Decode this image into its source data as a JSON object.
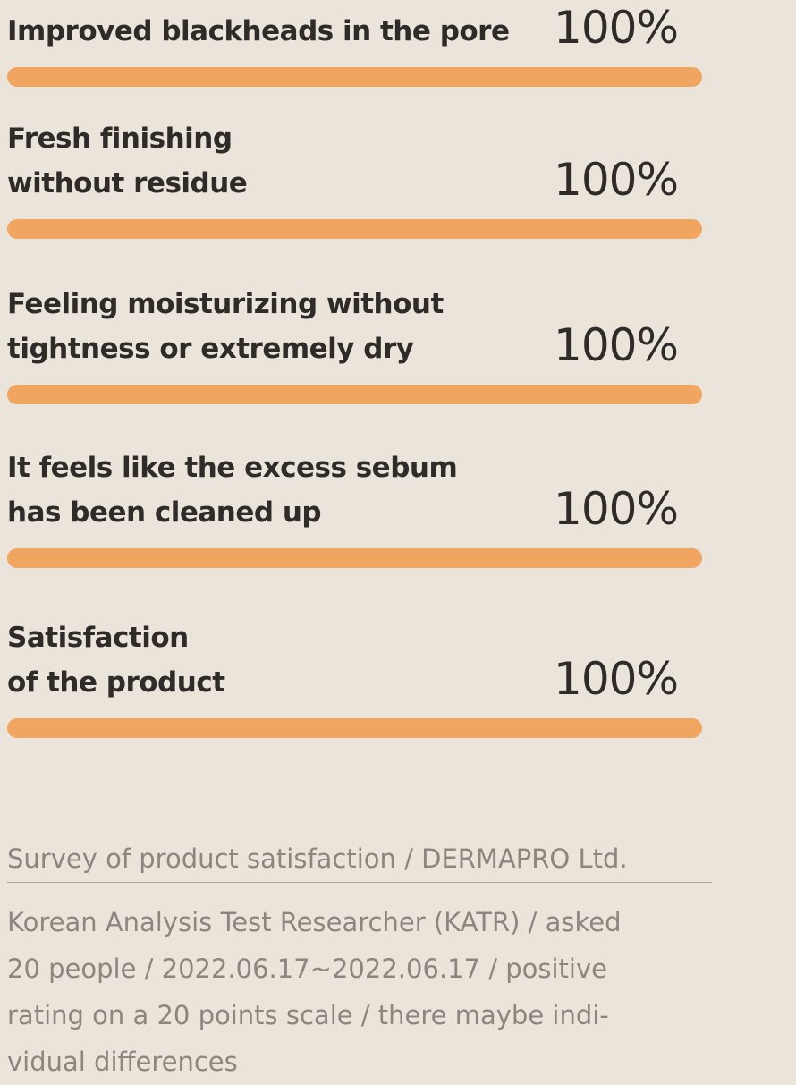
{
  "chart_data": {
    "type": "bar",
    "orientation": "horizontal",
    "categories": [
      "Improved blackheads in the pore",
      "Fresh finishing\nwithout residue",
      "Feeling moisturizing without\ntightness or extremely dry",
      "It feels like the excess sebum\nhas been cleaned up",
      "Satisfaction\nof the product"
    ],
    "values": [
      100,
      100,
      100,
      100,
      100
    ],
    "value_labels": [
      "100%",
      "100%",
      "100%",
      "100%",
      "100%"
    ],
    "color": "#f0a560",
    "xlim": [
      0,
      100
    ]
  },
  "footer": {
    "source": "Survey of product satisfaction / DERMAPRO Ltd.",
    "note": "Korean Analysis Test Researcher (KATR) / asked\n20 people / 2022.06.17~2022.06.17 / positive\nrating on a 20 points scale / there maybe indi-\nvidual differences"
  }
}
